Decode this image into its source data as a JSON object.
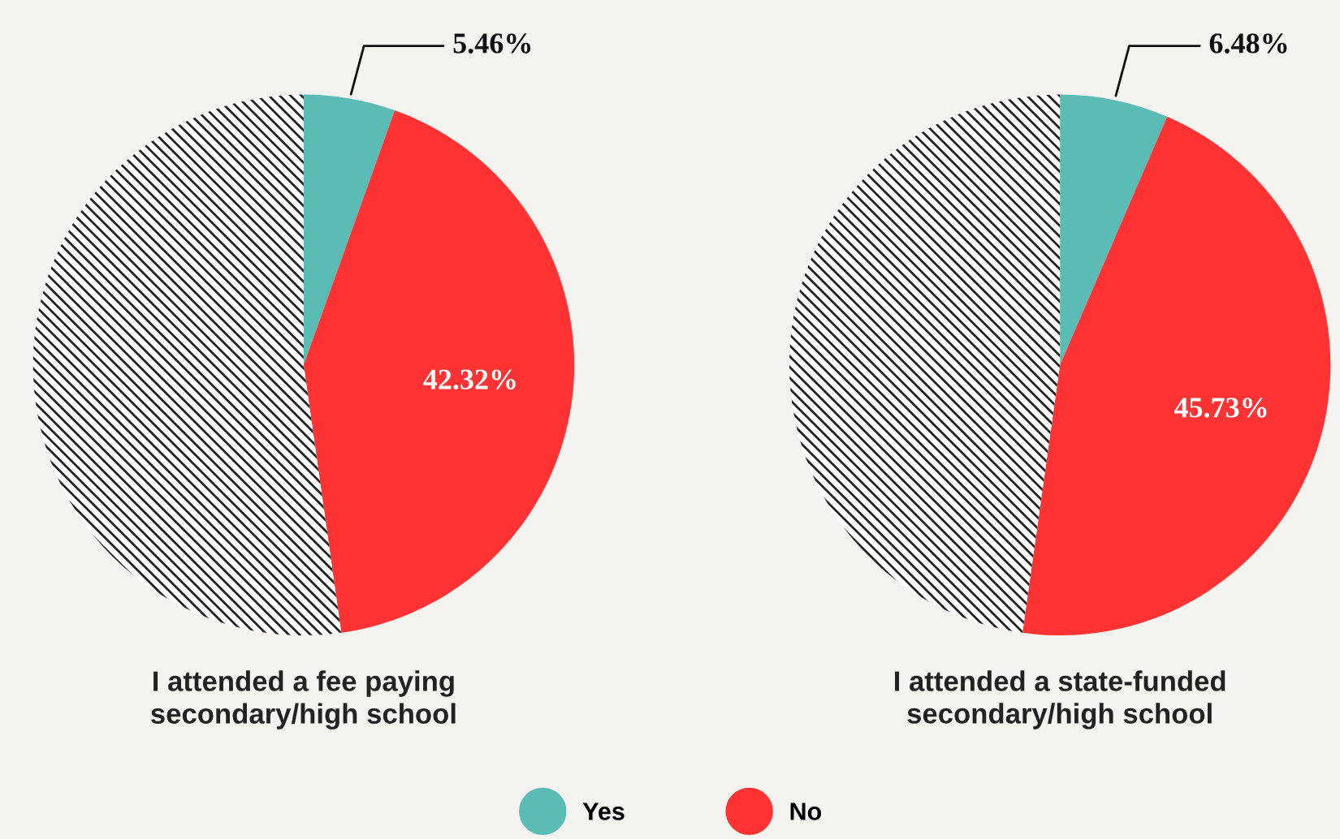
{
  "chart_data": [
    {
      "type": "pie",
      "title": "I attended a fee paying\nsecondary/high school",
      "categories": [
        "Yes",
        "No",
        null
      ],
      "values": [
        5.46,
        42.32,
        52.22
      ],
      "colors": [
        "#5bbcb5",
        "#ff3333",
        "#ffffff"
      ],
      "value_labels": [
        "5.46%",
        "42.32%",
        null
      ],
      "legend": "bottom"
    },
    {
      "type": "pie",
      "title": "I attended a state-funded\nsecondary/high school",
      "categories": [
        null,
        null,
        null
      ],
      "values": [
        6.48,
        45.73,
        47.79
      ],
      "colors": [
        "#5bbcb5",
        "#ff3333",
        "#ffffff"
      ],
      "value_labels": [
        "6.48%",
        "45.73%",
        null
      ]
    }
  ]
}
